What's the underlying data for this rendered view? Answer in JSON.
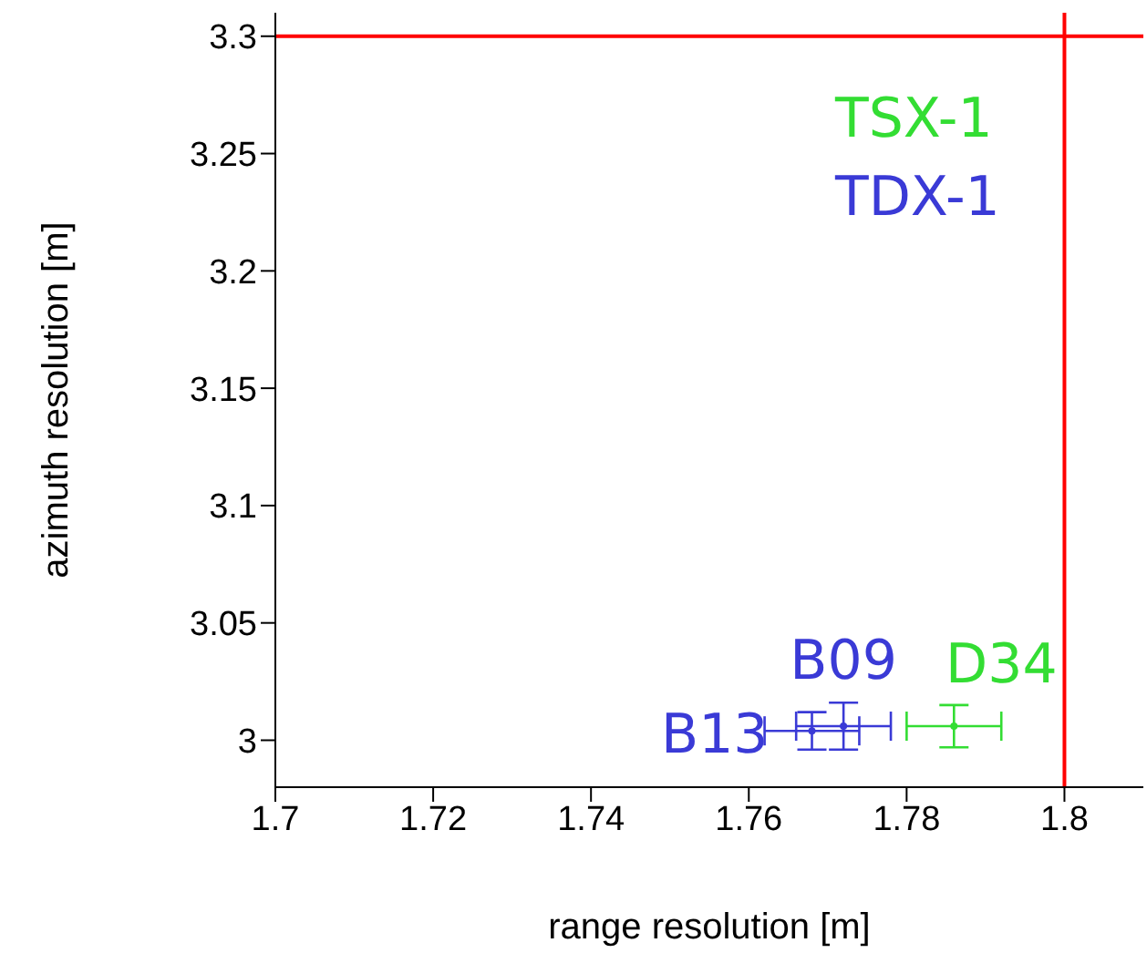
{
  "chart_data": {
    "type": "scatter",
    "xlabel": "range resolution [m]",
    "ylabel": "azimuth resolution [m]",
    "xlim": [
      1.7,
      1.81
    ],
    "xticks": [
      1.7,
      1.72,
      1.74,
      1.76,
      1.78,
      1.8
    ],
    "ylim": [
      2.98,
      3.31
    ],
    "yticks": [
      3,
      3.05,
      3.1,
      3.15,
      3.2,
      3.25,
      3.3
    ],
    "series": [
      {
        "name": "TSX-1",
        "color": "#33dd33",
        "x": [
          1.786
        ],
        "values": [
          3.006
        ],
        "errors": [
          0.009
        ],
        "xerrors": [
          0.006
        ]
      },
      {
        "name": "TDX-1",
        "color": "#3a3ad6",
        "x": [
          1.768,
          1.772
        ],
        "values": [
          3.004,
          3.006
        ],
        "errors": [
          0.008,
          0.01
        ],
        "xerrors": [
          0.006,
          0.006
        ]
      }
    ],
    "legend": false,
    "ref_lines": [
      {
        "axis": "x",
        "value": 1.8,
        "color": "#ff0000"
      },
      {
        "axis": "y",
        "value": 3.3,
        "color": "#ff0000"
      }
    ],
    "annotations": [
      {
        "text": "B13",
        "x": 1.768,
        "y": 3.004
      },
      {
        "text": "B09",
        "x": 1.772,
        "y": 3.006
      },
      {
        "text": "D34",
        "x": 1.786,
        "y": 3.006
      }
    ]
  }
}
